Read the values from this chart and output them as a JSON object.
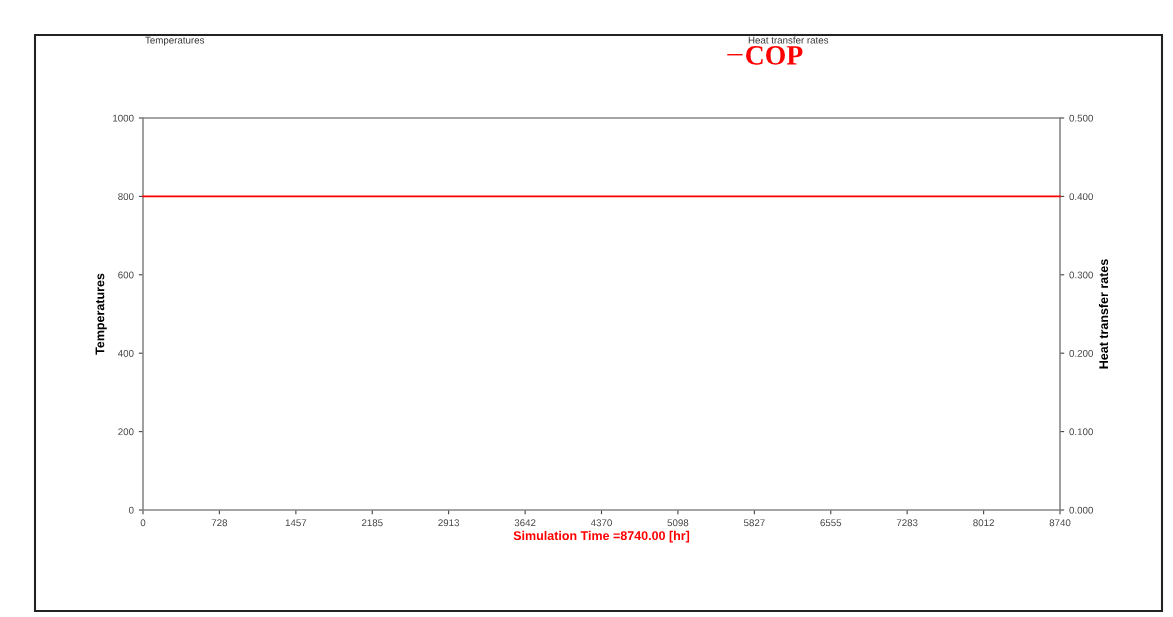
{
  "chart_data": {
    "type": "line",
    "xlabel": "Simulation Time =8740.00 [hr]",
    "ylabel": "Temperatures",
    "y2label": "Heat transfer rates",
    "annotations": [
      "Temperatures",
      "Heat transfer rates"
    ],
    "series": [
      {
        "name": "COP",
        "color": "#ff0000",
        "axis": "y2",
        "x": [
          0,
          8740
        ],
        "values": [
          0.4,
          0.4
        ]
      }
    ],
    "xlim": [
      0,
      8740
    ],
    "xticks": [
      0,
      728,
      1457,
      2185,
      2913,
      3642,
      4370,
      5098,
      5827,
      6555,
      7283,
      8012,
      8740
    ],
    "ylim": [
      0,
      1000
    ],
    "yticks": [
      0,
      200,
      400,
      600,
      800,
      1000
    ],
    "y2lim": [
      0,
      0.5
    ],
    "y2ticks": [
      {
        "value": 0,
        "label": "0.000"
      },
      {
        "value": 0.1,
        "label": "0.100"
      },
      {
        "value": 0.2,
        "label": "0.200"
      },
      {
        "value": 0.3,
        "label": "0.300"
      },
      {
        "value": 0.4,
        "label": "0.400"
      },
      {
        "value": 0.5,
        "label": "0.500"
      }
    ],
    "grid": false,
    "legend": "top right",
    "line_style": "solid"
  }
}
